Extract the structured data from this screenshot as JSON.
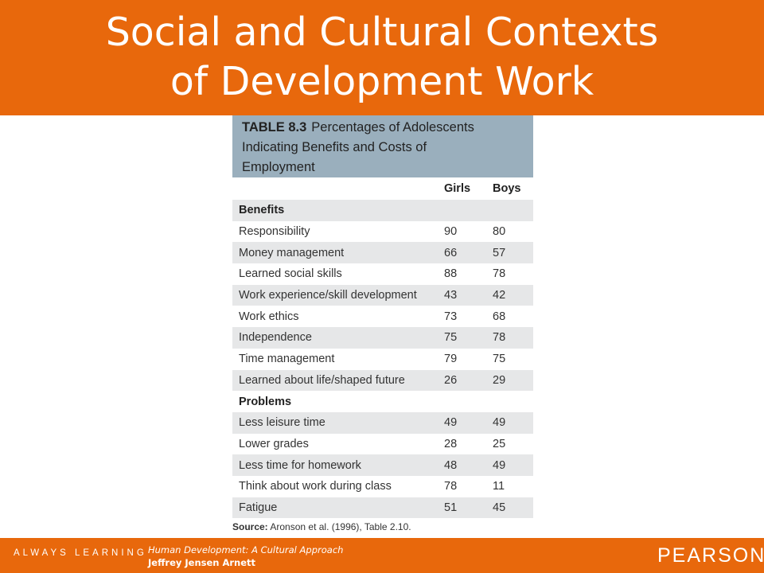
{
  "slide": {
    "title_line1": "Social and Cultural Contexts",
    "title_line2": "of Development Work"
  },
  "table": {
    "label": "TABLE 8.3",
    "caption_line1": "Percentages of Adolescents",
    "caption_line2": "Indicating Benefits and Costs of",
    "caption_line3": "Employment",
    "col_girls": "Girls",
    "col_boys": "Boys",
    "section_benefits": "Benefits",
    "section_problems": "Problems",
    "benefits": [
      {
        "label": "Responsibility",
        "girls": "90",
        "boys": "80"
      },
      {
        "label": "Money management",
        "girls": "66",
        "boys": "57"
      },
      {
        "label": "Learned social skills",
        "girls": "88",
        "boys": "78"
      },
      {
        "label": "Work experience/skill development",
        "girls": "43",
        "boys": "42"
      },
      {
        "label": "Work ethics",
        "girls": "73",
        "boys": "68"
      },
      {
        "label": "Independence",
        "girls": "75",
        "boys": "78"
      },
      {
        "label": "Time management",
        "girls": "79",
        "boys": "75"
      },
      {
        "label": "Learned about life/shaped future",
        "girls": "26",
        "boys": "29"
      }
    ],
    "problems": [
      {
        "label": "Less leisure time",
        "girls": "49",
        "boys": "49"
      },
      {
        "label": "Lower grades",
        "girls": "28",
        "boys": "25"
      },
      {
        "label": "Less time for homework",
        "girls": "48",
        "boys": "49"
      },
      {
        "label": "Think about work during class",
        "girls": "78",
        "boys": "11"
      },
      {
        "label": "Fatigue",
        "girls": "51",
        "boys": "45"
      }
    ],
    "source_label": "Source:",
    "source_text": "Aronson et al. (1996), Table 2.10."
  },
  "footer": {
    "tagline": "ALWAYS LEARNING",
    "book_title": "Human Development: A Cultural Approach",
    "author": "Jeffrey Jensen Arnett",
    "brand": "PEARSON"
  },
  "colors": {
    "accent": "#e8680c",
    "table_header": "#9aafbd",
    "row_shade": "#e6e7e8"
  }
}
